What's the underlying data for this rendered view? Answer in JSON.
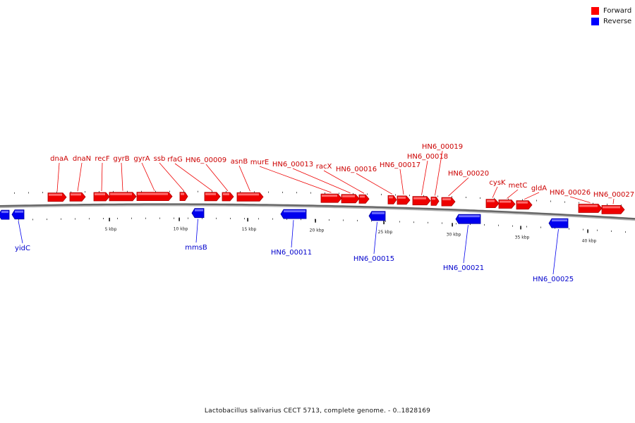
{
  "legend": {
    "forward": {
      "label": "Forward",
      "color": "#ff0000"
    },
    "reverse": {
      "label": "Reverse",
      "color": "#0000ff"
    }
  },
  "caption": "Lactobacillus salivarius CECT 5713, complete genome. - 0..1828169",
  "scale_labels": [
    "5 kbp",
    "10 kbp",
    "15 kbp",
    "20 kbp",
    "25 kbp",
    "30 kbp",
    "35 kbp",
    "40 kbp"
  ],
  "genes": [
    {
      "name": "dnaA",
      "strand": "forward"
    },
    {
      "name": "dnaN",
      "strand": "forward"
    },
    {
      "name": "recF",
      "strand": "forward"
    },
    {
      "name": "gyrB",
      "strand": "forward"
    },
    {
      "name": "gyrA",
      "strand": "forward"
    },
    {
      "name": "ssb",
      "strand": "forward"
    },
    {
      "name": "rfaG",
      "strand": "forward"
    },
    {
      "name": "HN6_00009",
      "strand": "forward"
    },
    {
      "name": "asnB",
      "strand": "forward"
    },
    {
      "name": "murE",
      "strand": "forward"
    },
    {
      "name": "HN6_00013",
      "strand": "forward"
    },
    {
      "name": "racX",
      "strand": "forward"
    },
    {
      "name": "HN6_00016",
      "strand": "forward"
    },
    {
      "name": "HN6_00017",
      "strand": "forward"
    },
    {
      "name": "HN6_00018",
      "strand": "forward"
    },
    {
      "name": "HN6_00019",
      "strand": "forward"
    },
    {
      "name": "HN6_00020",
      "strand": "forward"
    },
    {
      "name": "cysK",
      "strand": "forward"
    },
    {
      "name": "metC",
      "strand": "forward"
    },
    {
      "name": "gldA",
      "strand": "forward"
    },
    {
      "name": "HN6_00026",
      "strand": "forward"
    },
    {
      "name": "HN6_00027",
      "strand": "forward"
    },
    {
      "name": "yidC",
      "strand": "reverse"
    },
    {
      "name": "mmsB",
      "strand": "reverse"
    },
    {
      "name": "HN6_00011",
      "strand": "reverse"
    },
    {
      "name": "HN6_00015",
      "strand": "reverse"
    },
    {
      "name": "HN6_00021",
      "strand": "reverse"
    },
    {
      "name": "HN6_00025",
      "strand": "reverse"
    }
  ]
}
